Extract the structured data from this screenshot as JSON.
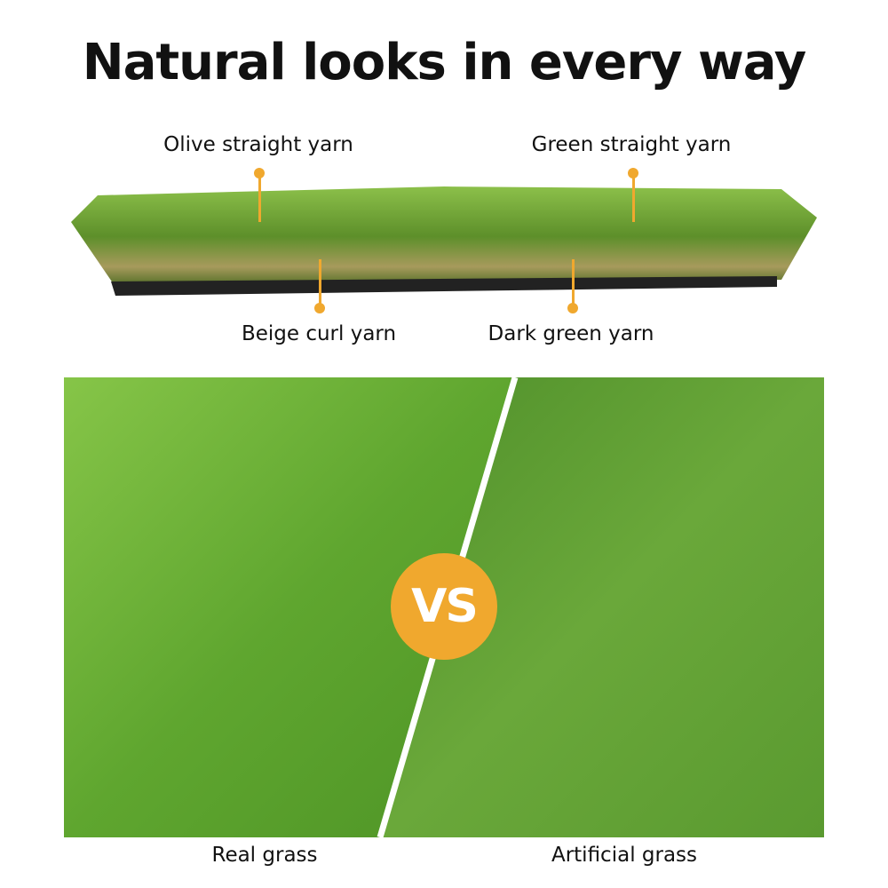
{
  "title": "Natural looks in every way",
  "callouts": {
    "olive": "Olive straight yarn",
    "green": "Green straight yarn",
    "beige": "Beige curl yarn",
    "dark": "Dark green yarn"
  },
  "comparison": {
    "badge": "VS",
    "left": "Real grass",
    "right": "Artificial grass"
  },
  "colors": {
    "accent": "#f0a82e",
    "grass_real": "#6fb43a",
    "grass_artificial": "#5a9a2e"
  }
}
